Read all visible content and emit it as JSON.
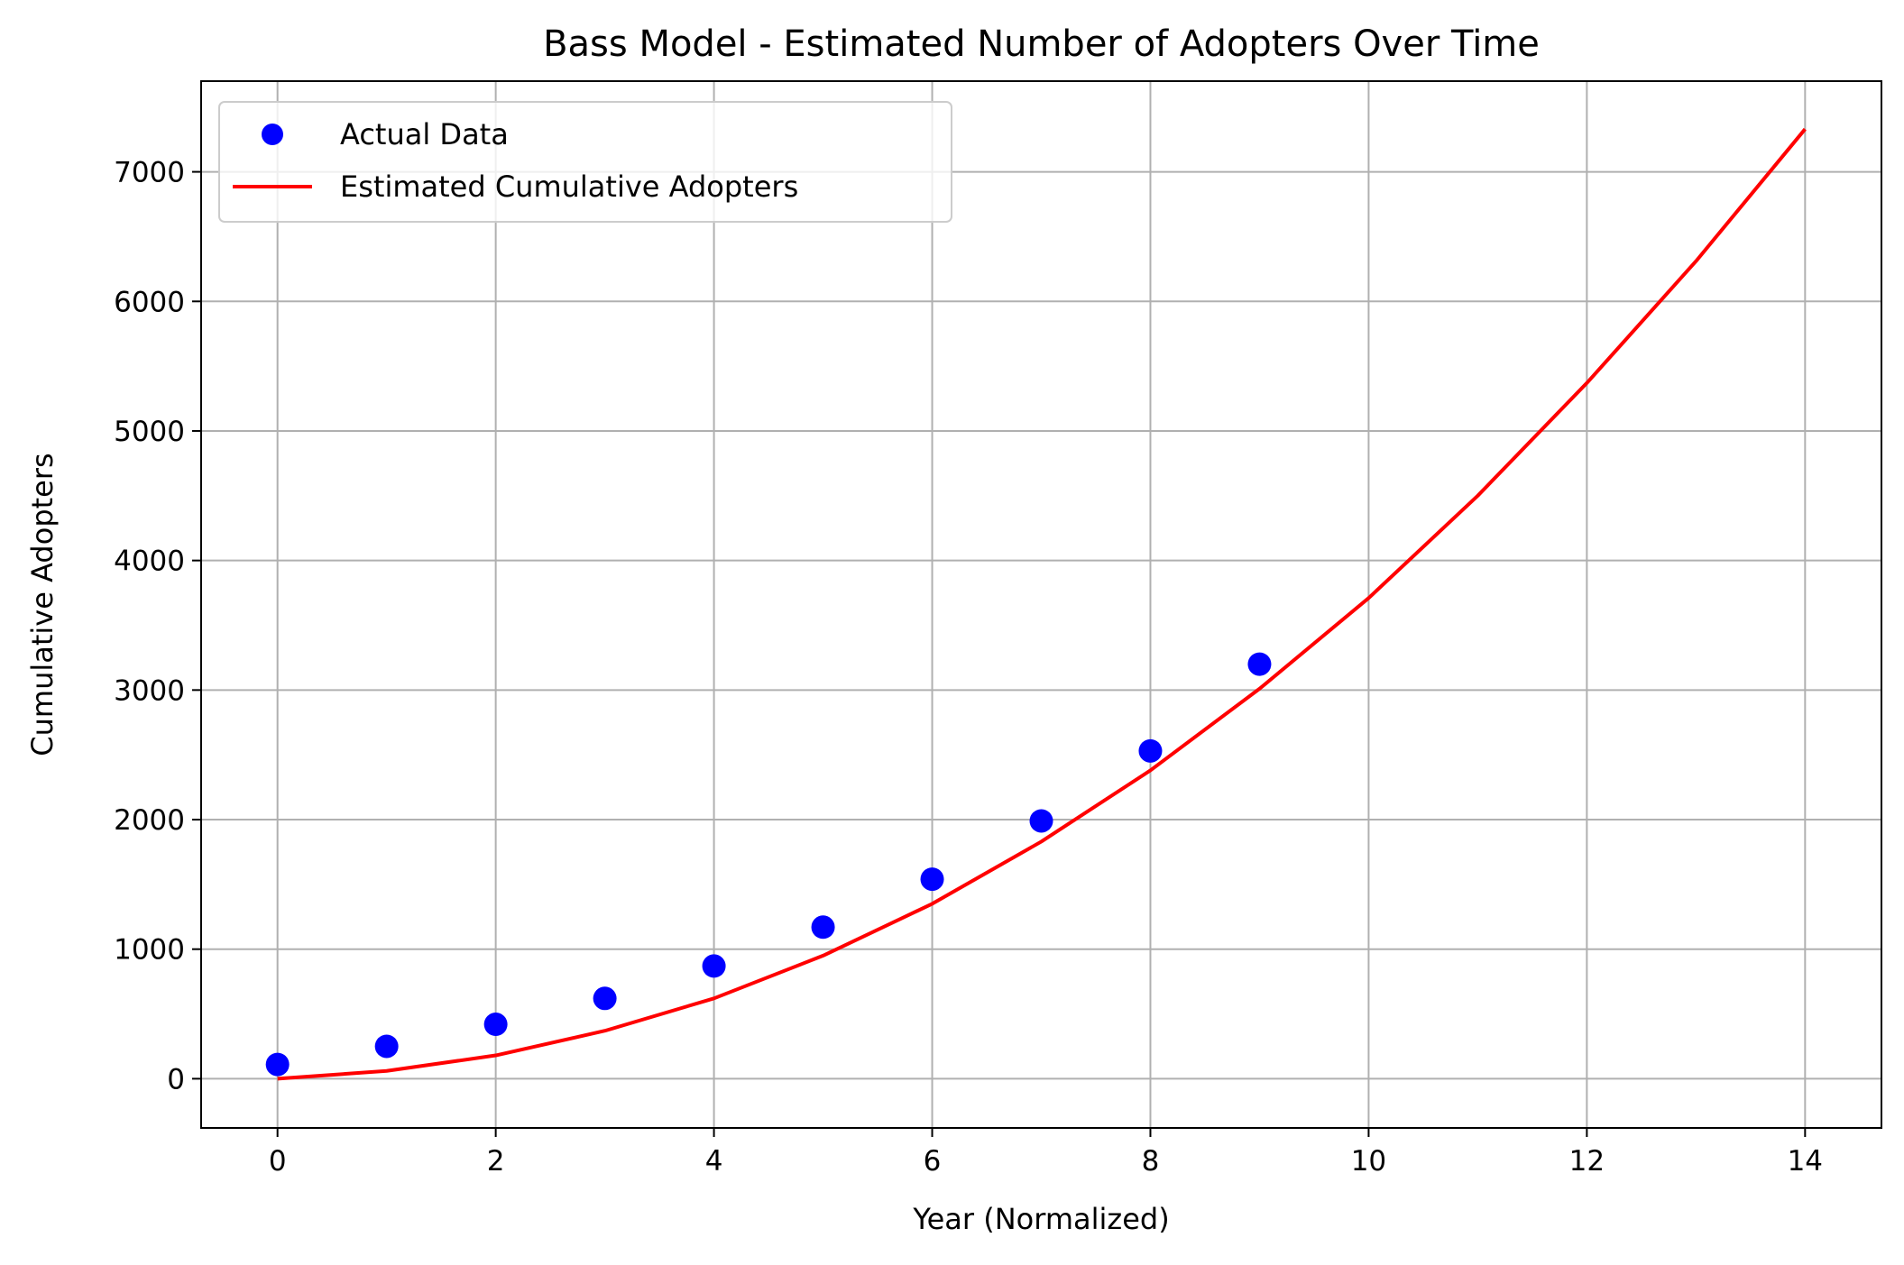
{
  "chart_data": {
    "type": "line",
    "title": "Bass Model - Estimated Number of Adopters Over Time",
    "xlabel": "Year (Normalized)",
    "ylabel": "Cumulative Adopters",
    "xlim": [
      -0.7,
      14.7
    ],
    "ylim": [
      -380,
      7700
    ],
    "xticks": [
      0,
      2,
      4,
      6,
      8,
      10,
      12,
      14
    ],
    "yticks": [
      0,
      1000,
      2000,
      3000,
      4000,
      5000,
      6000,
      7000
    ],
    "grid": true,
    "legend_position": "top-left",
    "series": [
      {
        "name": "Actual Data",
        "kind": "scatter",
        "color": "#0000ff",
        "x": [
          0,
          1,
          2,
          3,
          4,
          5,
          6,
          7,
          8,
          9
        ],
        "y": [
          110,
          250,
          420,
          620,
          870,
          1170,
          1540,
          1990,
          2530,
          3200
        ]
      },
      {
        "name": "Estimated Cumulative Adopters",
        "kind": "line",
        "color": "#ff0000",
        "x": [
          0,
          1,
          2,
          3,
          4,
          5,
          6,
          7,
          8,
          9,
          10,
          11,
          12,
          13,
          14
        ],
        "y": [
          0,
          60,
          180,
          370,
          620,
          950,
          1350,
          1830,
          2380,
          3010,
          3710,
          4500,
          5370,
          6310,
          7330
        ]
      }
    ]
  }
}
